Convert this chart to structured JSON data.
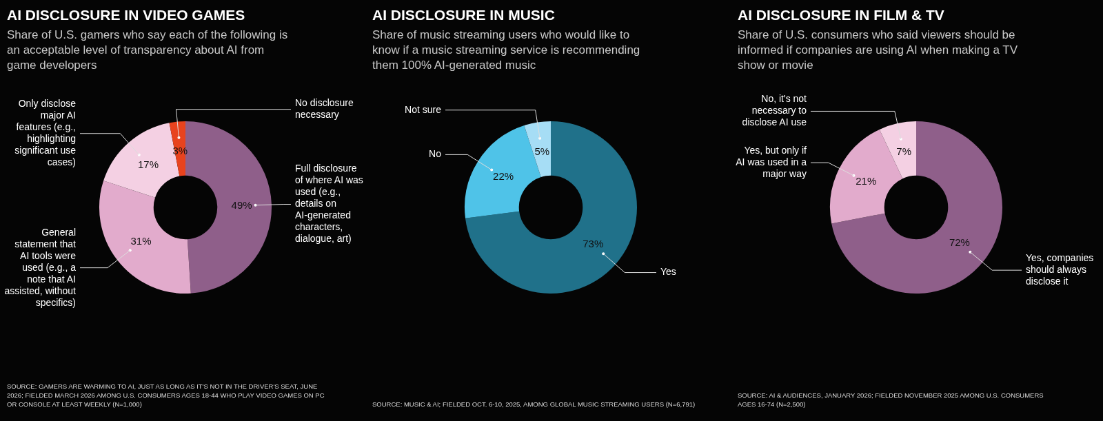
{
  "chart_data": [
    {
      "type": "donut",
      "title": "AI DISCLOSURE IN VIDEO GAMES",
      "subtitle": "Share of U.S. gamers who say each of the following is an acceptable level of transparency about AI from game developers",
      "categories": [
        "Full disclosure of where AI was used (e.g., details on AI-generated characters, dialogue, art)",
        "General statement that AI tools were used (e.g., a note that AI assisted, without specifics)",
        "Only disclose major AI features (e.g., highlighting significant use cases)",
        "No disclosure necessary"
      ],
      "values": [
        49,
        31,
        17,
        3
      ],
      "value_labels": [
        "49%",
        "31%",
        "17%",
        "3%"
      ],
      "colors": [
        "#8f5f8a",
        "#e2abcc",
        "#f4d0e3",
        "#e8431e"
      ],
      "legend": false,
      "annotations": [
        "SOURCE: GAMERS ARE WARMING TO AI, JUST AS LONG AS IT'S NOT IN THE DRIVER'S SEAT, JUNE 2026; FIELDED MARCH 2026 AMONG U.S. CONSUMERS AGES 18-44 WHO PLAY VIDEO GAMES ON PC OR CONSOLE AT LEAST WEEKLY (N=1,000)"
      ]
    },
    {
      "type": "donut",
      "title": "AI DISCLOSURE IN MUSIC",
      "subtitle": "Share of music streaming users who would like to know if a music streaming service is recommending them 100% AI-generated music",
      "categories": [
        "Yes",
        "No",
        "Not sure"
      ],
      "values": [
        73,
        22,
        5
      ],
      "value_labels": [
        "73%",
        "22%",
        "5%"
      ],
      "colors": [
        "#20718a",
        "#4fc3e8",
        "#a6ddf5"
      ],
      "legend": false,
      "annotations": [
        "SOURCE: MUSIC & AI; FIELDED OCT. 6-10, 2025, AMONG GLOBAL MUSIC STREAMING USERS (N=6,791)"
      ]
    },
    {
      "type": "donut",
      "title": "AI DISCLOSURE IN FILM & TV",
      "subtitle": "Share of U.S. consumers who said viewers should be informed if companies are using AI when making a TV show or movie",
      "categories": [
        "Yes, companies should always disclose it",
        "Yes, but only if AI was used in a major way",
        "No, it's not necessary to disclose AI use"
      ],
      "values": [
        72,
        21,
        7
      ],
      "value_labels": [
        "72%",
        "21%",
        "7%"
      ],
      "colors": [
        "#8f5f8a",
        "#e2abcc",
        "#f4d0e3"
      ],
      "legend": false,
      "annotations": [
        "SOURCE: AI & AUDIENCES, JANUARY 2026; FIELDED NOVEMBER 2025 AMONG U.S. CONSUMERS AGES 16-74 (N=2,500)"
      ]
    }
  ]
}
